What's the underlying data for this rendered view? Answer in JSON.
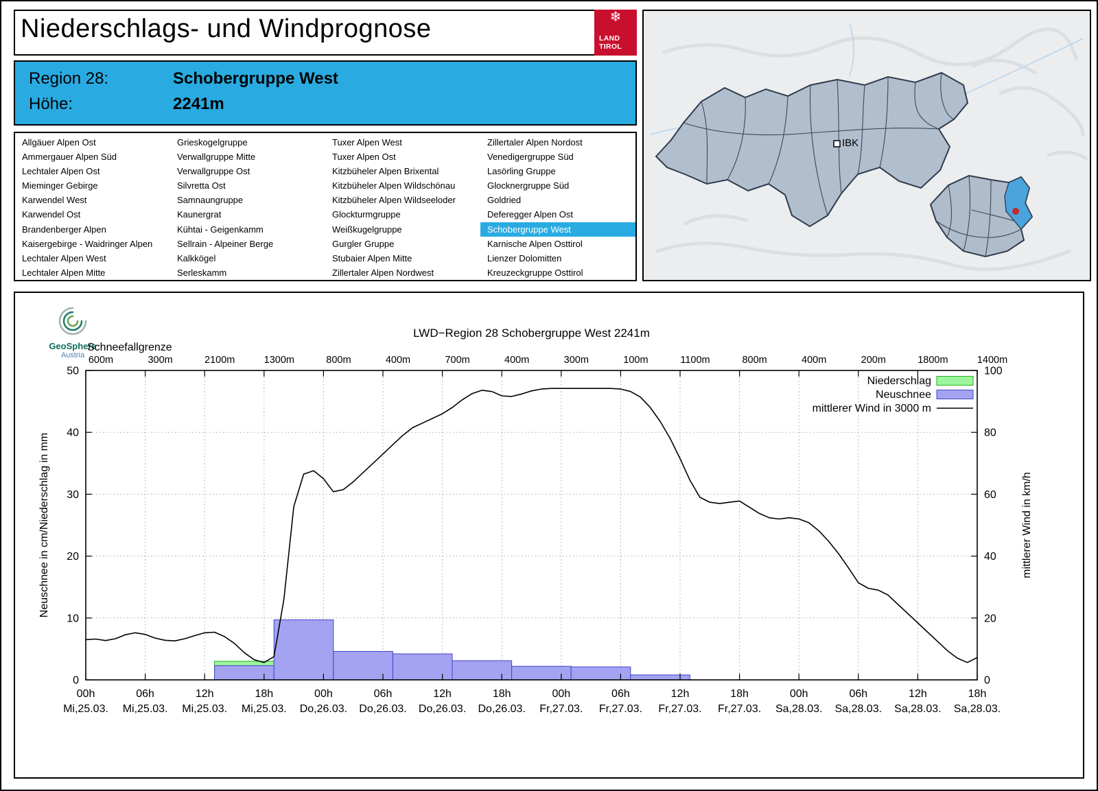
{
  "header": {
    "title": "Niederschlags- und Windprognose",
    "logo_line1": "LAND",
    "logo_line2": "TIROL"
  },
  "region_info": {
    "region_label": "Region 28:",
    "region_name": "Schobergruppe West",
    "altitude_label": "Höhe:",
    "altitude_value": "2241m"
  },
  "region_list": {
    "selected": "Schobergruppe West",
    "columns": [
      [
        "Allgäuer Alpen Ost",
        "Ammergauer Alpen Süd",
        "Lechtaler Alpen Ost",
        "Mieminger Gebirge",
        "Karwendel West",
        "Karwendel Ost",
        "Brandenberger Alpen",
        "Kaisergebirge - Waidringer Alpen",
        "Lechtaler Alpen West",
        "Lechtaler Alpen Mitte"
      ],
      [
        "Grieskogelgruppe",
        "Verwallgruppe Mitte",
        "Verwallgruppe Ost",
        "Silvretta Ost",
        "Samnaungruppe",
        "Kaunergrat",
        "Kühtai - Geigenkamm",
        "Sellrain - Alpeiner Berge",
        "Kalkkögel",
        "Serleskamm"
      ],
      [
        "Tuxer Alpen West",
        "Tuxer Alpen Ost",
        "Kitzbüheler Alpen Brixental",
        "Kitzbüheler Alpen Wildschönau",
        "Kitzbüheler Alpen Wildseeloder",
        "Glockturmgruppe",
        "Weißkugelgruppe",
        "Gurgler Gruppe",
        "Stubaier Alpen Mitte",
        "Zillertaler Alpen Nordwest"
      ],
      [
        "Zillertaler Alpen Nordost",
        "Venedigergruppe Süd",
        "Lasörling Gruppe",
        "Glocknergruppe Süd",
        "Goldried",
        "Deferegger Alpen Ost",
        "Schobergruppe West",
        "Karnische Alpen Osttirol",
        "Lienzer Dolomitten",
        "Kreuzeckgruppe Osttirol"
      ]
    ]
  },
  "map": {
    "marker_label": "IBK"
  },
  "geosphere_logo": {
    "line1": "GeoSphere",
    "line2": "Austria"
  },
  "chart_data": {
    "type": "composite",
    "title": "LWD−Region 28 Schobergruppe West 2241m",
    "snowline_label": "Schneefallgrenze",
    "snowline_values": [
      "600m",
      "300m",
      "2100m",
      "1300m",
      "800m",
      "400m",
      "700m",
      "400m",
      "300m",
      "100m",
      "1100m",
      "800m",
      "400m",
      "200m",
      "1800m",
      "1400m"
    ],
    "ylabel_left": "Neuschnee in cm/Niederschlag in mm",
    "ylabel_right": "mittlerer Wind in km/h",
    "ylim_left": [
      0,
      50
    ],
    "ylim_right": [
      0,
      100
    ],
    "y_ticks_left": [
      0,
      10,
      20,
      30,
      40,
      50
    ],
    "y_ticks_right": [
      0,
      20,
      40,
      60,
      80,
      100
    ],
    "x_total_hours": 90,
    "x_tick_step_hours": 6,
    "x_ticks": [
      {
        "time": "00h",
        "date": "Mi,25.03."
      },
      {
        "time": "06h",
        "date": "Mi,25.03."
      },
      {
        "time": "12h",
        "date": "Mi,25.03."
      },
      {
        "time": "18h",
        "date": "Mi,25.03."
      },
      {
        "time": "00h",
        "date": "Do,26.03."
      },
      {
        "time": "06h",
        "date": "Do,26.03."
      },
      {
        "time": "12h",
        "date": "Do,26.03."
      },
      {
        "time": "18h",
        "date": "Do,26.03."
      },
      {
        "time": "00h",
        "date": "Fr,27.03."
      },
      {
        "time": "06h",
        "date": "Fr,27.03."
      },
      {
        "time": "12h",
        "date": "Fr,27.03."
      },
      {
        "time": "18h",
        "date": "Fr,27.03."
      },
      {
        "time": "00h",
        "date": "Sa,28.03."
      },
      {
        "time": "06h",
        "date": "Sa,28.03."
      },
      {
        "time": "12h",
        "date": "Sa,28.03."
      },
      {
        "time": "18h",
        "date": "Sa,28.03."
      }
    ],
    "legend": [
      {
        "label": "Niederschlag",
        "swatch": "box",
        "fill": "#9cf59c",
        "stroke": "#1faf1f"
      },
      {
        "label": "Neuschnee",
        "swatch": "box",
        "fill": "#a3a3f2",
        "stroke": "#4343cc"
      },
      {
        "label": "mittlerer Wind in 3000 m",
        "swatch": "line",
        "stroke": "#000000"
      }
    ],
    "series": [
      {
        "name": "Niederschlag",
        "unit": "mm",
        "type": "bar",
        "axis": "left",
        "bars": [
          {
            "start_h": 13,
            "end_h": 19,
            "value": 3.0
          }
        ]
      },
      {
        "name": "Neuschnee",
        "unit": "cm",
        "type": "bar",
        "axis": "left",
        "bars": [
          {
            "start_h": 13,
            "end_h": 19,
            "value": 2.3
          },
          {
            "start_h": 19,
            "end_h": 25,
            "value": 9.7
          },
          {
            "start_h": 25,
            "end_h": 31,
            "value": 4.6
          },
          {
            "start_h": 31,
            "end_h": 37,
            "value": 4.2
          },
          {
            "start_h": 37,
            "end_h": 43,
            "value": 3.1
          },
          {
            "start_h": 43,
            "end_h": 49,
            "value": 2.2
          },
          {
            "start_h": 49,
            "end_h": 55,
            "value": 2.1
          },
          {
            "start_h": 55,
            "end_h": 61,
            "value": 0.8
          }
        ]
      },
      {
        "name": "mittlerer Wind in 3000 m",
        "unit": "km/h",
        "type": "line",
        "axis": "right",
        "points": [
          [
            0,
            13
          ],
          [
            1,
            13.2
          ],
          [
            2,
            12.7
          ],
          [
            3,
            13.3
          ],
          [
            4,
            14.6
          ],
          [
            5,
            15.2
          ],
          [
            6,
            14.7
          ],
          [
            7,
            13.5
          ],
          [
            8,
            12.8
          ],
          [
            9,
            12.6
          ],
          [
            10,
            13.3
          ],
          [
            11,
            14.3
          ],
          [
            12,
            15.2
          ],
          [
            13,
            15.4
          ],
          [
            14,
            14.0
          ],
          [
            15,
            11.8
          ],
          [
            16,
            8.8
          ],
          [
            17,
            6.5
          ],
          [
            18,
            5.6
          ],
          [
            19,
            7.5
          ],
          [
            20,
            26
          ],
          [
            21,
            56
          ],
          [
            22,
            66.5
          ],
          [
            23,
            67.6
          ],
          [
            24,
            65
          ],
          [
            25,
            60.8
          ],
          [
            26,
            61.5
          ],
          [
            27,
            64
          ],
          [
            28,
            67
          ],
          [
            29,
            70
          ],
          [
            30,
            73
          ],
          [
            31,
            76
          ],
          [
            32,
            79
          ],
          [
            33,
            81.5
          ],
          [
            34,
            83
          ],
          [
            35,
            84.5
          ],
          [
            36,
            86
          ],
          [
            37,
            88
          ],
          [
            38,
            90.5
          ],
          [
            39,
            92.5
          ],
          [
            40,
            93.6
          ],
          [
            41,
            93.2
          ],
          [
            42,
            91.8
          ],
          [
            43,
            91.6
          ],
          [
            44,
            92.4
          ],
          [
            45,
            93.4
          ],
          [
            46,
            94
          ],
          [
            47,
            94.2
          ],
          [
            49,
            94.2
          ],
          [
            51,
            94.2
          ],
          [
            53,
            94.2
          ],
          [
            54,
            94
          ],
          [
            55,
            93.2
          ],
          [
            56,
            91.4
          ],
          [
            57,
            88
          ],
          [
            58,
            83.5
          ],
          [
            59,
            78
          ],
          [
            60,
            71.5
          ],
          [
            61,
            64.5
          ],
          [
            62,
            59
          ],
          [
            63,
            57.4
          ],
          [
            64,
            57
          ],
          [
            65,
            57.4
          ],
          [
            66,
            57.8
          ],
          [
            67,
            55.8
          ],
          [
            68,
            53.8
          ],
          [
            69,
            52.4
          ],
          [
            70,
            52
          ],
          [
            71,
            52.4
          ],
          [
            72,
            52
          ],
          [
            73,
            50.8
          ],
          [
            74,
            48.2
          ],
          [
            75,
            44.8
          ],
          [
            76,
            40.8
          ],
          [
            77,
            36.2
          ],
          [
            78,
            31.4
          ],
          [
            79,
            29.6
          ],
          [
            80,
            29
          ],
          [
            81,
            27.4
          ],
          [
            82,
            24.4
          ],
          [
            83,
            21.4
          ],
          [
            84,
            18.4
          ],
          [
            85,
            15.4
          ],
          [
            86,
            12.4
          ],
          [
            87,
            9.4
          ],
          [
            88,
            7
          ],
          [
            89,
            5.6
          ],
          [
            90,
            7.2
          ]
        ]
      }
    ]
  },
  "theme": {
    "accent_cyan": "#29abe2",
    "selected_text": "#ffffff",
    "land_tirol_red": "#c8102e",
    "map_district_fill": "#b1becd",
    "map_east_fill": "#aebccb",
    "map_selected_fill": "#4aa3dc",
    "map_marker_red": "#c62828"
  }
}
